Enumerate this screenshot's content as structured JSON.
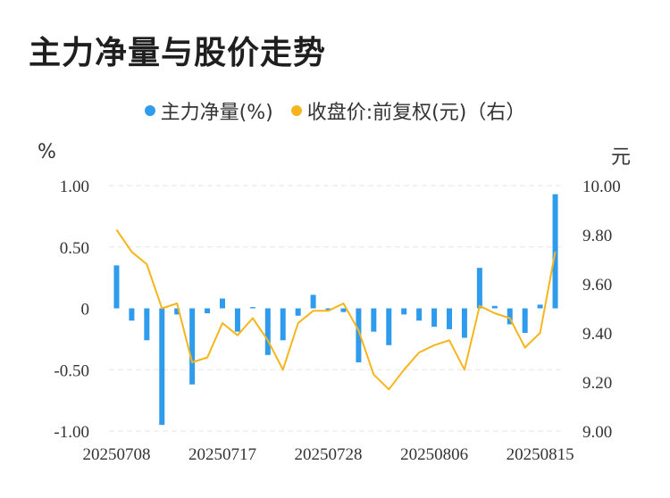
{
  "title": "主力净量与股价走势",
  "legend": [
    {
      "label": "主力净量(%)",
      "color": "#2f9bec"
    },
    {
      "label": "收盘价:前复权(元)（右）",
      "color": "#f6b51b"
    }
  ],
  "left_unit": "%",
  "right_unit": "元",
  "chart_data": {
    "type": "bar+line",
    "x": [
      "20250708",
      "20250709",
      "20250710",
      "20250711",
      "20250714",
      "20250715",
      "20250716",
      "20250717",
      "20250718",
      "20250721",
      "20250722",
      "20250723",
      "20250724",
      "20250725",
      "20250728",
      "20250729",
      "20250730",
      "20250731",
      "20250801",
      "20250804",
      "20250805",
      "20250806",
      "20250807",
      "20250808",
      "20250811",
      "20250812",
      "20250813",
      "20250814",
      "20250815",
      "20250818"
    ],
    "x_tick_labels": [
      "20250708",
      "20250717",
      "20250728",
      "20250806",
      "20250815"
    ],
    "series": [
      {
        "name": "主力净量(%)",
        "axis": "left",
        "kind": "bar",
        "values": [
          0.35,
          -0.1,
          -0.26,
          -0.95,
          -0.05,
          -0.62,
          -0.04,
          0.08,
          -0.19,
          0.01,
          -0.38,
          -0.26,
          -0.06,
          0.11,
          -0.02,
          -0.03,
          -0.44,
          -0.19,
          -0.3,
          -0.05,
          -0.1,
          -0.15,
          -0.17,
          -0.24,
          0.33,
          0.02,
          -0.13,
          -0.2,
          0.03,
          0.93
        ]
      },
      {
        "name": "收盘价:前复权(元)（右）",
        "axis": "right",
        "kind": "line",
        "values": [
          9.82,
          9.73,
          9.68,
          9.5,
          9.52,
          9.28,
          9.3,
          9.44,
          9.39,
          9.46,
          9.37,
          9.25,
          9.44,
          9.49,
          9.49,
          9.52,
          9.41,
          9.23,
          9.17,
          9.25,
          9.32,
          9.35,
          9.37,
          9.25,
          9.51,
          9.48,
          9.46,
          9.34,
          9.4,
          9.73
        ]
      }
    ],
    "left_axis": {
      "ylim": [
        -1.0,
        1.0
      ],
      "ticks": [
        "1.00",
        "0.50",
        "0",
        "-0.50",
        "-1.00"
      ]
    },
    "right_axis": {
      "ylim": [
        9.0,
        10.0
      ],
      "ticks": [
        "10.00",
        "9.80",
        "9.60",
        "9.40",
        "9.20",
        "9.00"
      ]
    },
    "grid": true
  }
}
